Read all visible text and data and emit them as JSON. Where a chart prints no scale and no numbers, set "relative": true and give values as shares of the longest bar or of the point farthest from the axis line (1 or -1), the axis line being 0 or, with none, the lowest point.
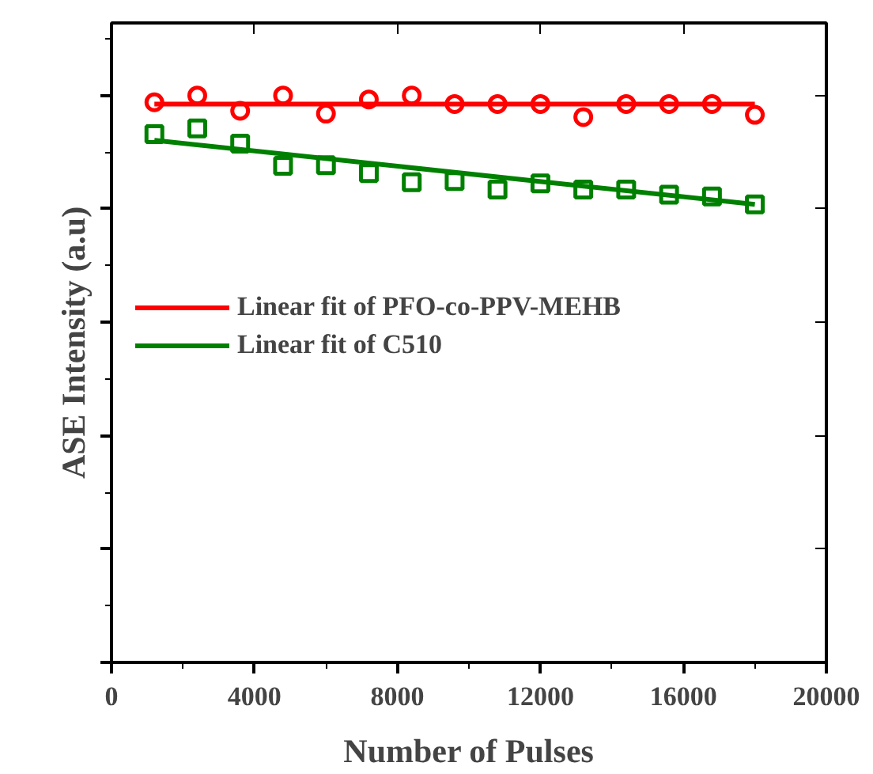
{
  "chart_data": {
    "type": "scatter",
    "relative": true,
    "xlabel": "Number of Pulses",
    "ylabel": "ASE Intensity (a.u)",
    "xlim": [
      0,
      20000
    ],
    "xticks": [
      0,
      4000,
      8000,
      12000,
      16000,
      20000
    ],
    "tick_labels": "x",
    "legend": "top left",
    "grid": false,
    "series": [
      {
        "color": "#ff0000",
        "marker": "circle",
        "x": [
          1200,
          2400,
          3600,
          4800,
          6000,
          7200,
          8400,
          9600,
          10800,
          12000,
          13200,
          14400,
          15600,
          16800,
          18000
        ],
        "values": [
          0.988,
          1,
          0.973,
          1,
          0.968,
          0.993,
          1,
          0.985,
          0.985,
          0.985,
          0.962,
          0.985,
          0.985,
          0.985,
          0.966
        ]
      },
      {
        "color": "#008000",
        "marker": "square",
        "x": [
          1200,
          2400,
          3600,
          4800,
          6000,
          7200,
          8400,
          9600,
          10800,
          12000,
          13200,
          14400,
          15600,
          16800,
          18000
        ],
        "values": [
          0.932,
          0.942,
          0.915,
          0.876,
          0.877,
          0.863,
          0.847,
          0.849,
          0.834,
          0.845,
          0.834,
          0.834,
          0.825,
          0.822,
          0.808
        ]
      },
      {
        "type": "line",
        "name": "Linear fit of PFO-co-PPV-MEHB",
        "color": "#ff0000",
        "marker": "none",
        "x": [
          1200,
          18000
        ],
        "values": [
          0.985,
          0.985
        ]
      },
      {
        "type": "line",
        "name": "Linear fit of C510",
        "color": "#008000",
        "marker": "none",
        "x": [
          1200,
          18000
        ],
        "values": [
          0.921,
          0.808
        ]
      }
    ]
  }
}
